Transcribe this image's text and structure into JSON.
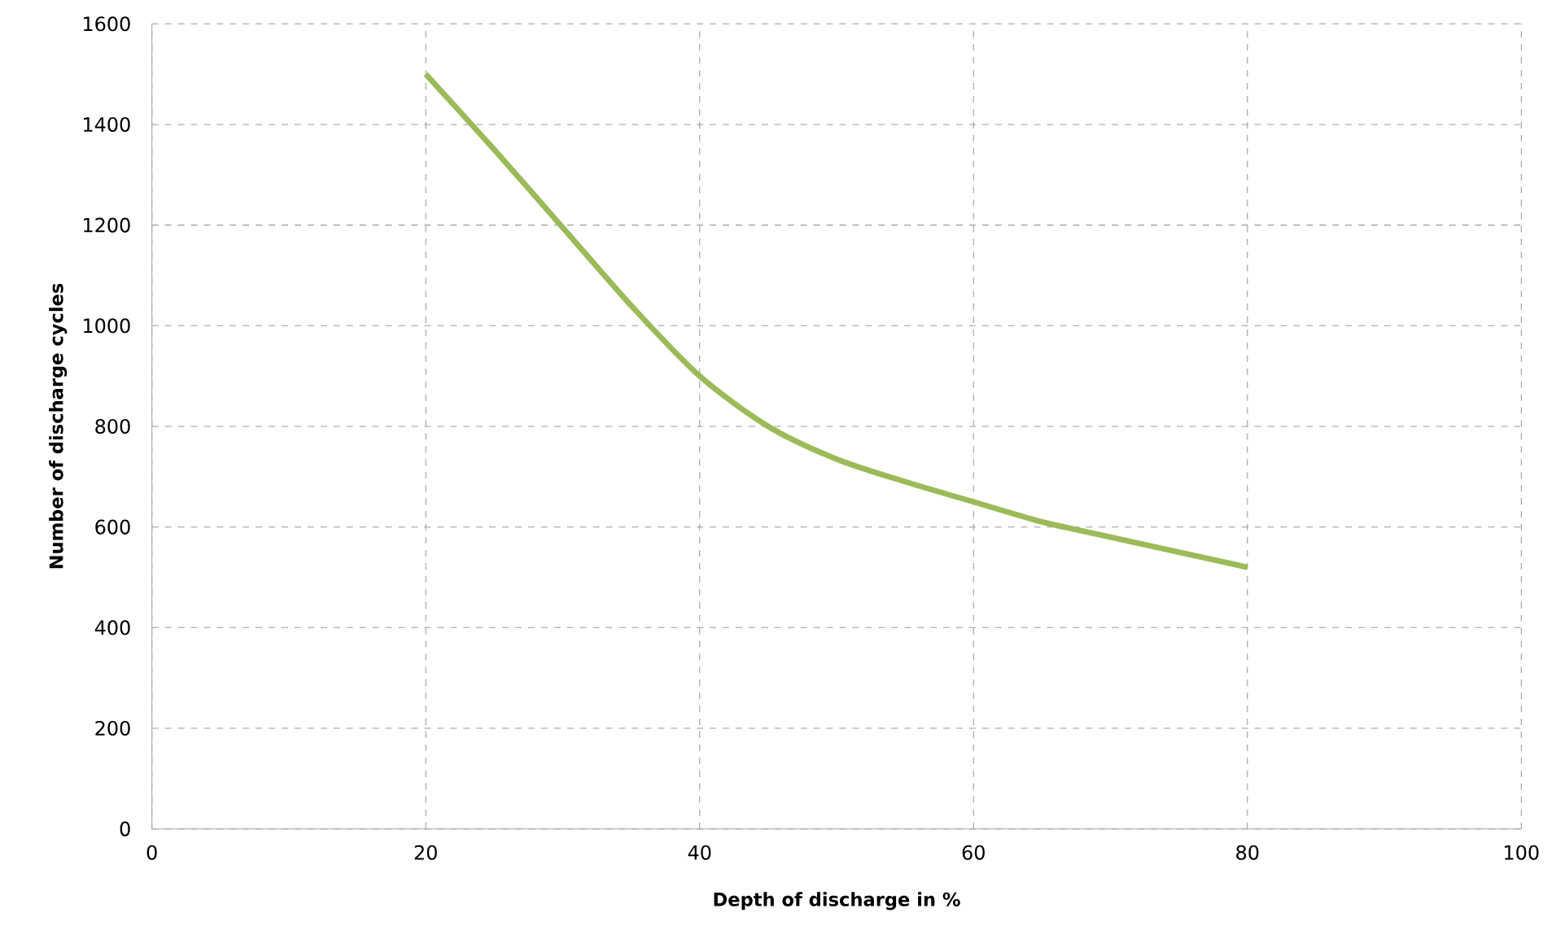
{
  "chart_data": {
    "type": "line",
    "xlabel": "Depth of discharge  in %",
    "ylabel": "Number of discharge cycles",
    "x": [
      20,
      25,
      30,
      35,
      40,
      45,
      50,
      55,
      60,
      65,
      70,
      75,
      80
    ],
    "series": [
      {
        "color": "#9bbb59",
        "values": [
          1500,
          1350,
          1195,
          1040,
          900,
          800,
          735,
          690,
          650,
          610,
          580,
          550,
          520
        ]
      }
    ],
    "xlim": [
      0,
      100
    ],
    "ylim": [
      0,
      1600
    ],
    "xticks": [
      0,
      20,
      40,
      60,
      80,
      100
    ],
    "yticks": [
      0,
      200,
      400,
      600,
      800,
      1000,
      1200,
      1400,
      1600
    ],
    "grid": true,
    "legend": false,
    "marker": "none",
    "line_style": "solid"
  }
}
